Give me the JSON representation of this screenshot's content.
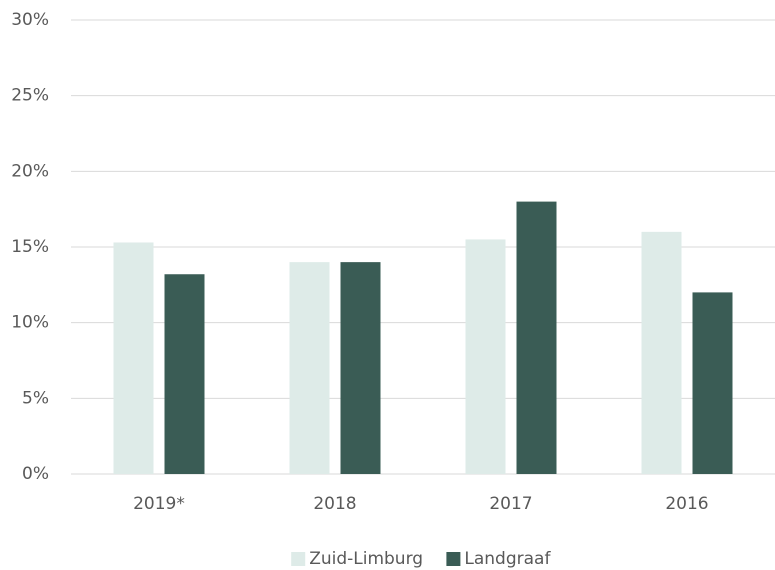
{
  "chart_data": {
    "type": "bar",
    "categories": [
      "2019*",
      "2018",
      "2017",
      "2016"
    ],
    "series": [
      {
        "name": "Zuid-Limburg",
        "color": "#deebe8",
        "values": [
          15.3,
          14,
          15.5,
          16
        ]
      },
      {
        "name": "Landgraaf",
        "color": "#3a5c55",
        "values": [
          13.2,
          14,
          18,
          12
        ]
      }
    ],
    "ylim": [
      0,
      30
    ],
    "yticks": [
      {
        "value": 0,
        "label": "0%"
      },
      {
        "value": 5,
        "label": "5%"
      },
      {
        "value": 10,
        "label": "10%"
      },
      {
        "value": 15,
        "label": "15%"
      },
      {
        "value": 20,
        "label": "20%"
      },
      {
        "value": 25,
        "label": "25%"
      },
      {
        "value": 30,
        "label": "30%"
      }
    ],
    "grid": true,
    "legend": "bottom"
  }
}
